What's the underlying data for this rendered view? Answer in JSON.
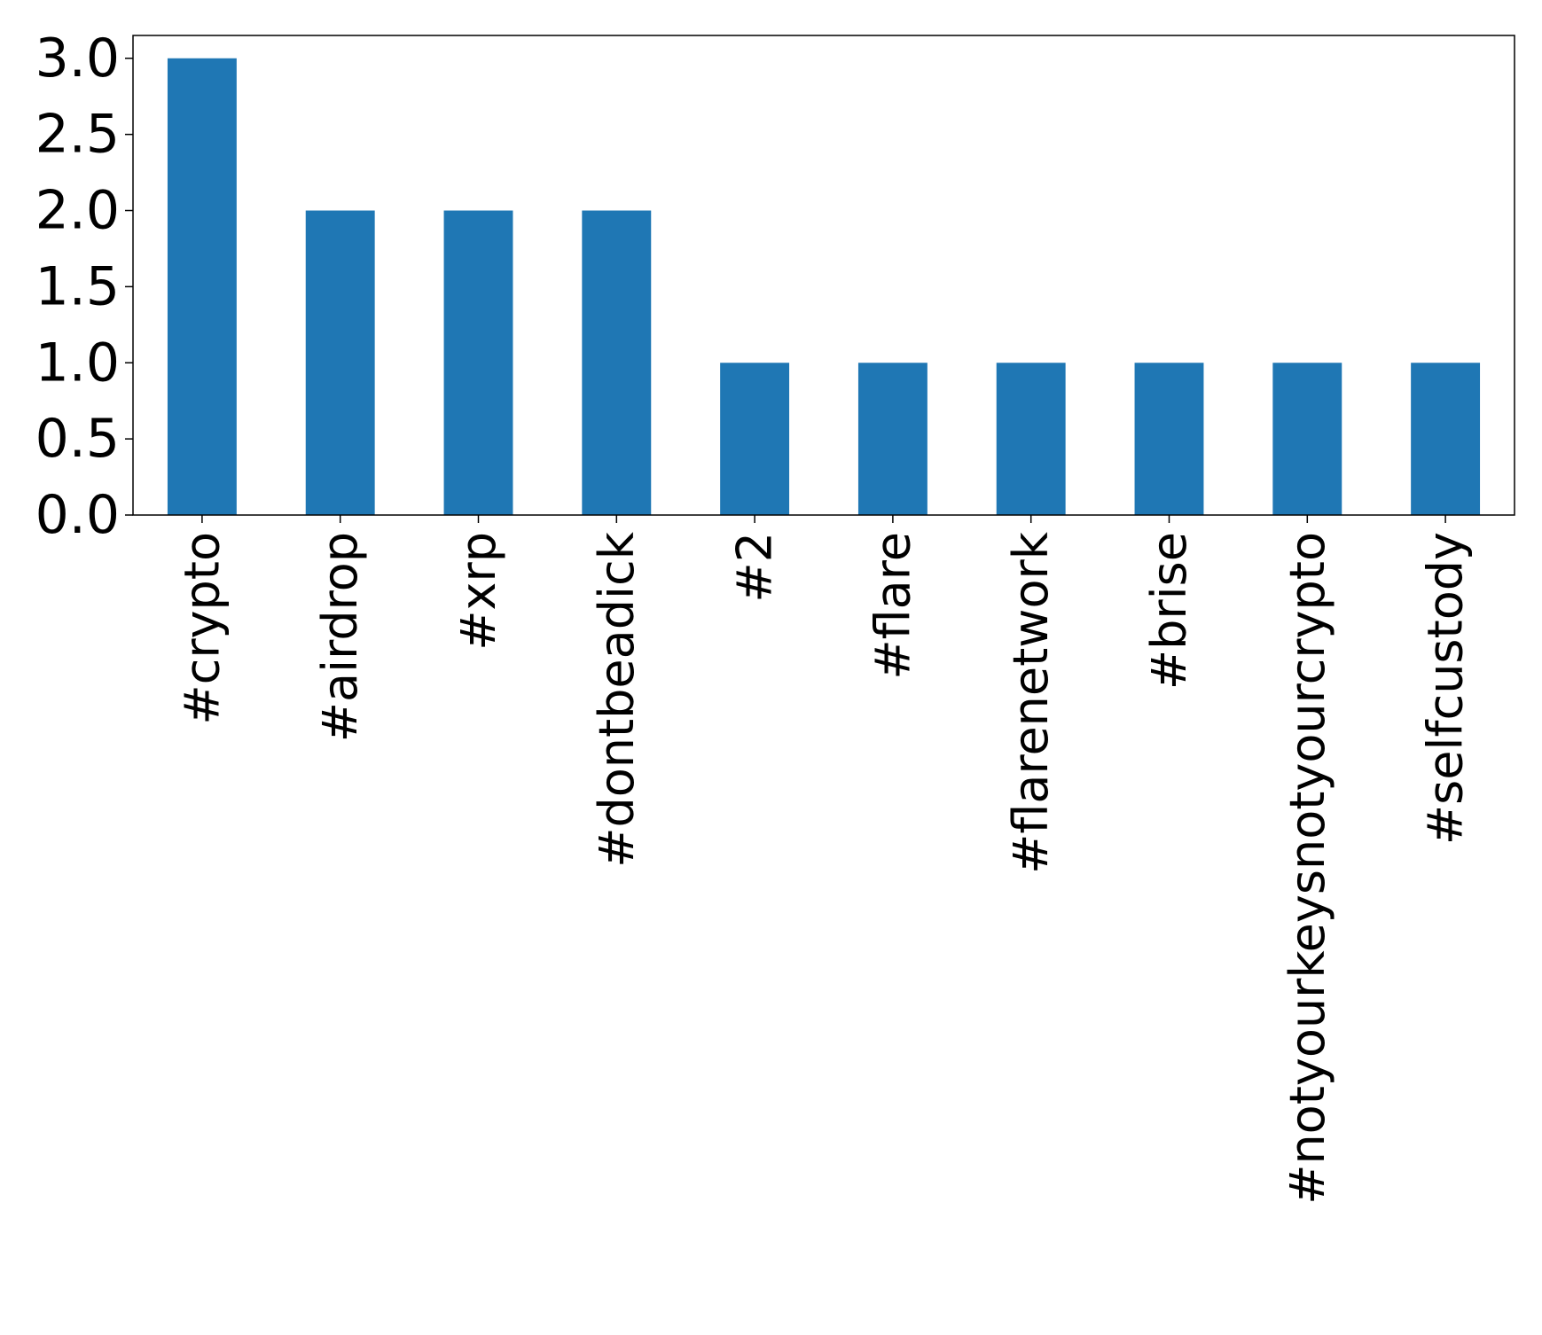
{
  "chart_data": {
    "type": "bar",
    "title": "",
    "xlabel": "",
    "ylabel": "",
    "categories": [
      "#crypto",
      "#airdrop",
      "#xrp",
      "#dontbeadick",
      "#2",
      "#flare",
      "#flarenetwork",
      "#brise",
      "#notyourkeysnotyourcrypto",
      "#selfcustody"
    ],
    "values": [
      3,
      2,
      2,
      2,
      1,
      1,
      1,
      1,
      1,
      1
    ],
    "ylim": [
      0,
      3.15
    ],
    "yticks": [
      0.0,
      0.5,
      1.0,
      1.5,
      2.0,
      2.5,
      3.0
    ],
    "ytick_labels": [
      "0.0",
      "0.5",
      "1.0",
      "1.5",
      "2.0",
      "2.5",
      "3.0"
    ],
    "grid": false,
    "legend": "none",
    "bar_color": "#1f77b4"
  }
}
